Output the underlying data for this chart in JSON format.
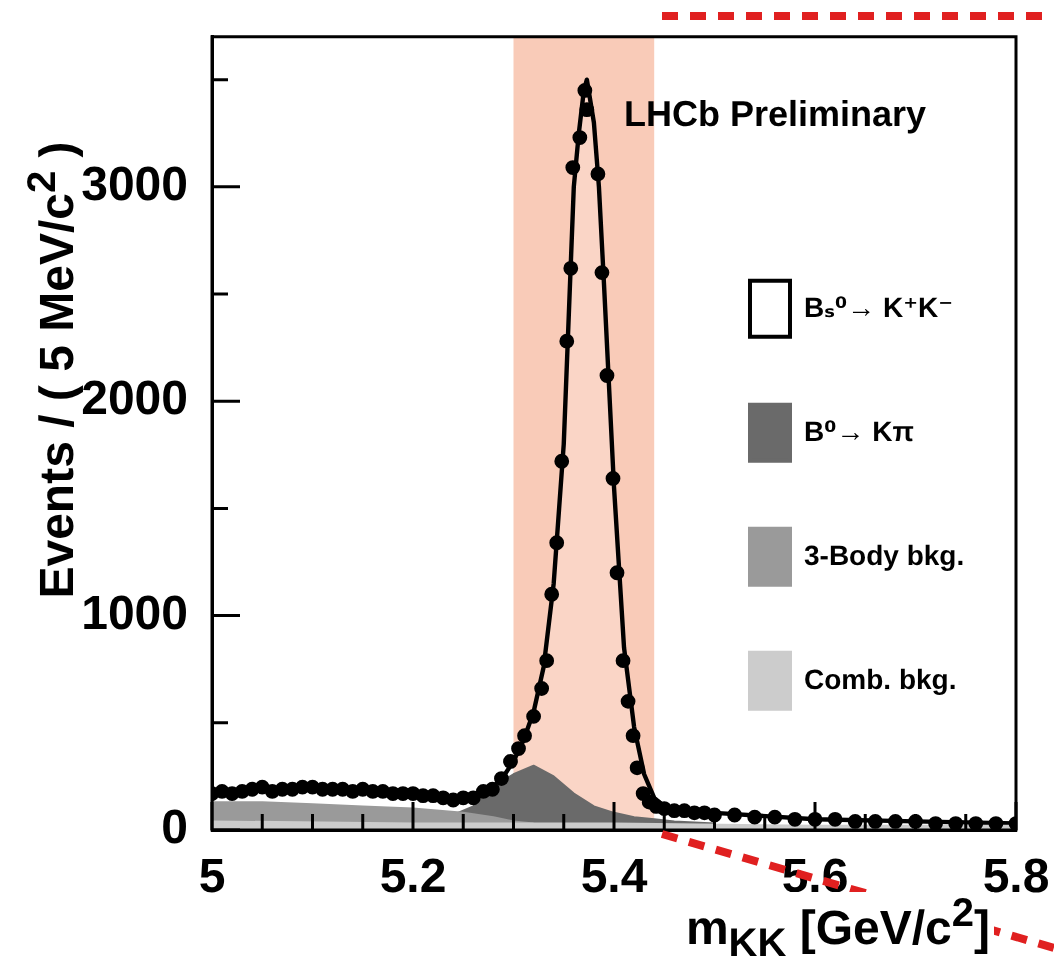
{
  "chart_data": {
    "type": "scatter",
    "xlabel": "m$_{KK}$ [GeV/c$^{2}$]",
    "ylabel": "Events / ( 5 MeV/c$^{2}$ )",
    "annotations": [
      "LHCb Preliminary"
    ],
    "xlim": [
      5,
      5.8
    ],
    "xticks": [
      5,
      {
        "value": 5.05,
        "label": null
      },
      {
        "value": 5.1,
        "label": null
      },
      {
        "value": 5.15,
        "label": null
      },
      5.2,
      {
        "value": 5.25,
        "label": null
      },
      {
        "value": 5.3,
        "label": null
      },
      {
        "value": 5.35,
        "label": null
      },
      5.4,
      {
        "value": 5.45,
        "label": null
      },
      {
        "value": 5.5,
        "label": null
      },
      {
        "value": 5.55,
        "label": null
      },
      5.6,
      {
        "value": 5.65,
        "label": null
      },
      {
        "value": 5.7,
        "label": null
      },
      {
        "value": 5.75,
        "label": null
      },
      5.8
    ],
    "ylim": [
      0,
      3700
    ],
    "yticks": [
      0,
      {
        "value": 500,
        "label": null
      },
      1000,
      {
        "value": 1500,
        "label": null
      },
      2000,
      {
        "value": 2500,
        "label": null
      },
      3000,
      {
        "value": 3500,
        "label": null
      }
    ],
    "bands": [
      {
        "axis": "x",
        "from": 5.3,
        "to": 5.44,
        "color": "#f7b9a0"
      }
    ],
    "legend": "right",
    "series": [
      {
        "color": "#000000",
        "marker": "circle",
        "x": [
          5.0,
          5.01,
          5.02,
          5.03,
          5.04,
          5.05,
          5.06,
          5.07,
          5.08,
          5.09,
          5.1,
          5.11,
          5.12,
          5.13,
          5.14,
          5.15,
          5.16,
          5.17,
          5.18,
          5.19,
          5.2,
          5.21,
          5.22,
          5.23,
          5.24,
          5.25,
          5.26,
          5.27,
          5.279,
          5.288,
          5.297,
          5.305,
          5.311,
          5.32,
          5.328,
          5.333,
          5.338,
          5.343,
          5.348,
          5.353,
          5.357,
          5.359,
          5.366,
          5.371,
          5.373,
          5.384,
          5.388,
          5.393,
          5.399,
          5.403,
          5.409,
          5.414,
          5.419,
          5.423,
          5.429,
          5.435,
          5.442,
          5.45,
          5.46,
          5.47,
          5.48,
          5.49,
          5.5,
          5.52,
          5.54,
          5.56,
          5.58,
          5.6,
          5.62,
          5.64,
          5.66,
          5.68,
          5.7,
          5.72,
          5.74,
          5.76,
          5.78,
          5.8
        ],
        "values": [
          170,
          180,
          170,
          180,
          190,
          200,
          180,
          190,
          190,
          200,
          200,
          190,
          190,
          190,
          180,
          190,
          180,
          180,
          170,
          170,
          170,
          160,
          160,
          150,
          140,
          150,
          150,
          180,
          190,
          240,
          320,
          380,
          440,
          530,
          660,
          790,
          1100,
          1340,
          1720,
          2280,
          2620,
          3090,
          3230,
          3450,
          3360,
          3060,
          2600,
          2120,
          1640,
          1200,
          790,
          600,
          440,
          290,
          170,
          130,
          110,
          100,
          90,
          90,
          80,
          80,
          70,
          70,
          60,
          60,
          50,
          50,
          50,
          40,
          40,
          40,
          40,
          30,
          30,
          30,
          30,
          30
        ]
      },
      {
        "type": "area",
        "name": "Bₛ⁰→ K⁺K⁻",
        "color": "#ffffff",
        "x": [
          5.0,
          5.05,
          5.1,
          5.15,
          5.2,
          5.24,
          5.26,
          5.28,
          5.29,
          5.3,
          5.31,
          5.32,
          5.33,
          5.34,
          5.35,
          5.355,
          5.36,
          5.365,
          5.37,
          5.373,
          5.38,
          5.385,
          5.39,
          5.4,
          5.41,
          5.42,
          5.43,
          5.44,
          5.45,
          5.5,
          5.6,
          5.7,
          5.8
        ],
        "values": [
          170,
          190,
          190,
          180,
          160,
          140,
          160,
          200,
          250,
          320,
          420,
          550,
          760,
          1150,
          1800,
          2400,
          3000,
          3250,
          3450,
          3500,
          3300,
          3000,
          2550,
          1600,
          850,
          480,
          260,
          150,
          110,
          80,
          50,
          40,
          30
        ]
      },
      {
        "type": "area",
        "name": "B⁰→ Kπ",
        "color": "#6a6a6a",
        "x": [
          5.24,
          5.26,
          5.28,
          5.3,
          5.32,
          5.34,
          5.36,
          5.38,
          5.4,
          5.42,
          5.44,
          5.46,
          5.5
        ],
        "values": [
          70,
          110,
          200,
          260,
          300,
          250,
          170,
          110,
          80,
          60,
          50,
          40,
          30
        ]
      },
      {
        "type": "area",
        "name": "3-Body bkg.",
        "color": "#9a9a9a",
        "x": [
          5.0,
          5.05,
          5.1,
          5.15,
          5.2,
          5.25,
          5.28,
          5.3,
          5.32
        ],
        "values": [
          130,
          130,
          120,
          110,
          100,
          80,
          60,
          40,
          30
        ]
      },
      {
        "type": "area",
        "name": "Comb. bkg.",
        "color": "#cccccc",
        "x": [
          5.0,
          5.2,
          5.4,
          5.6,
          5.8
        ],
        "values": [
          40,
          30,
          30,
          20,
          20
        ]
      }
    ]
  }
}
